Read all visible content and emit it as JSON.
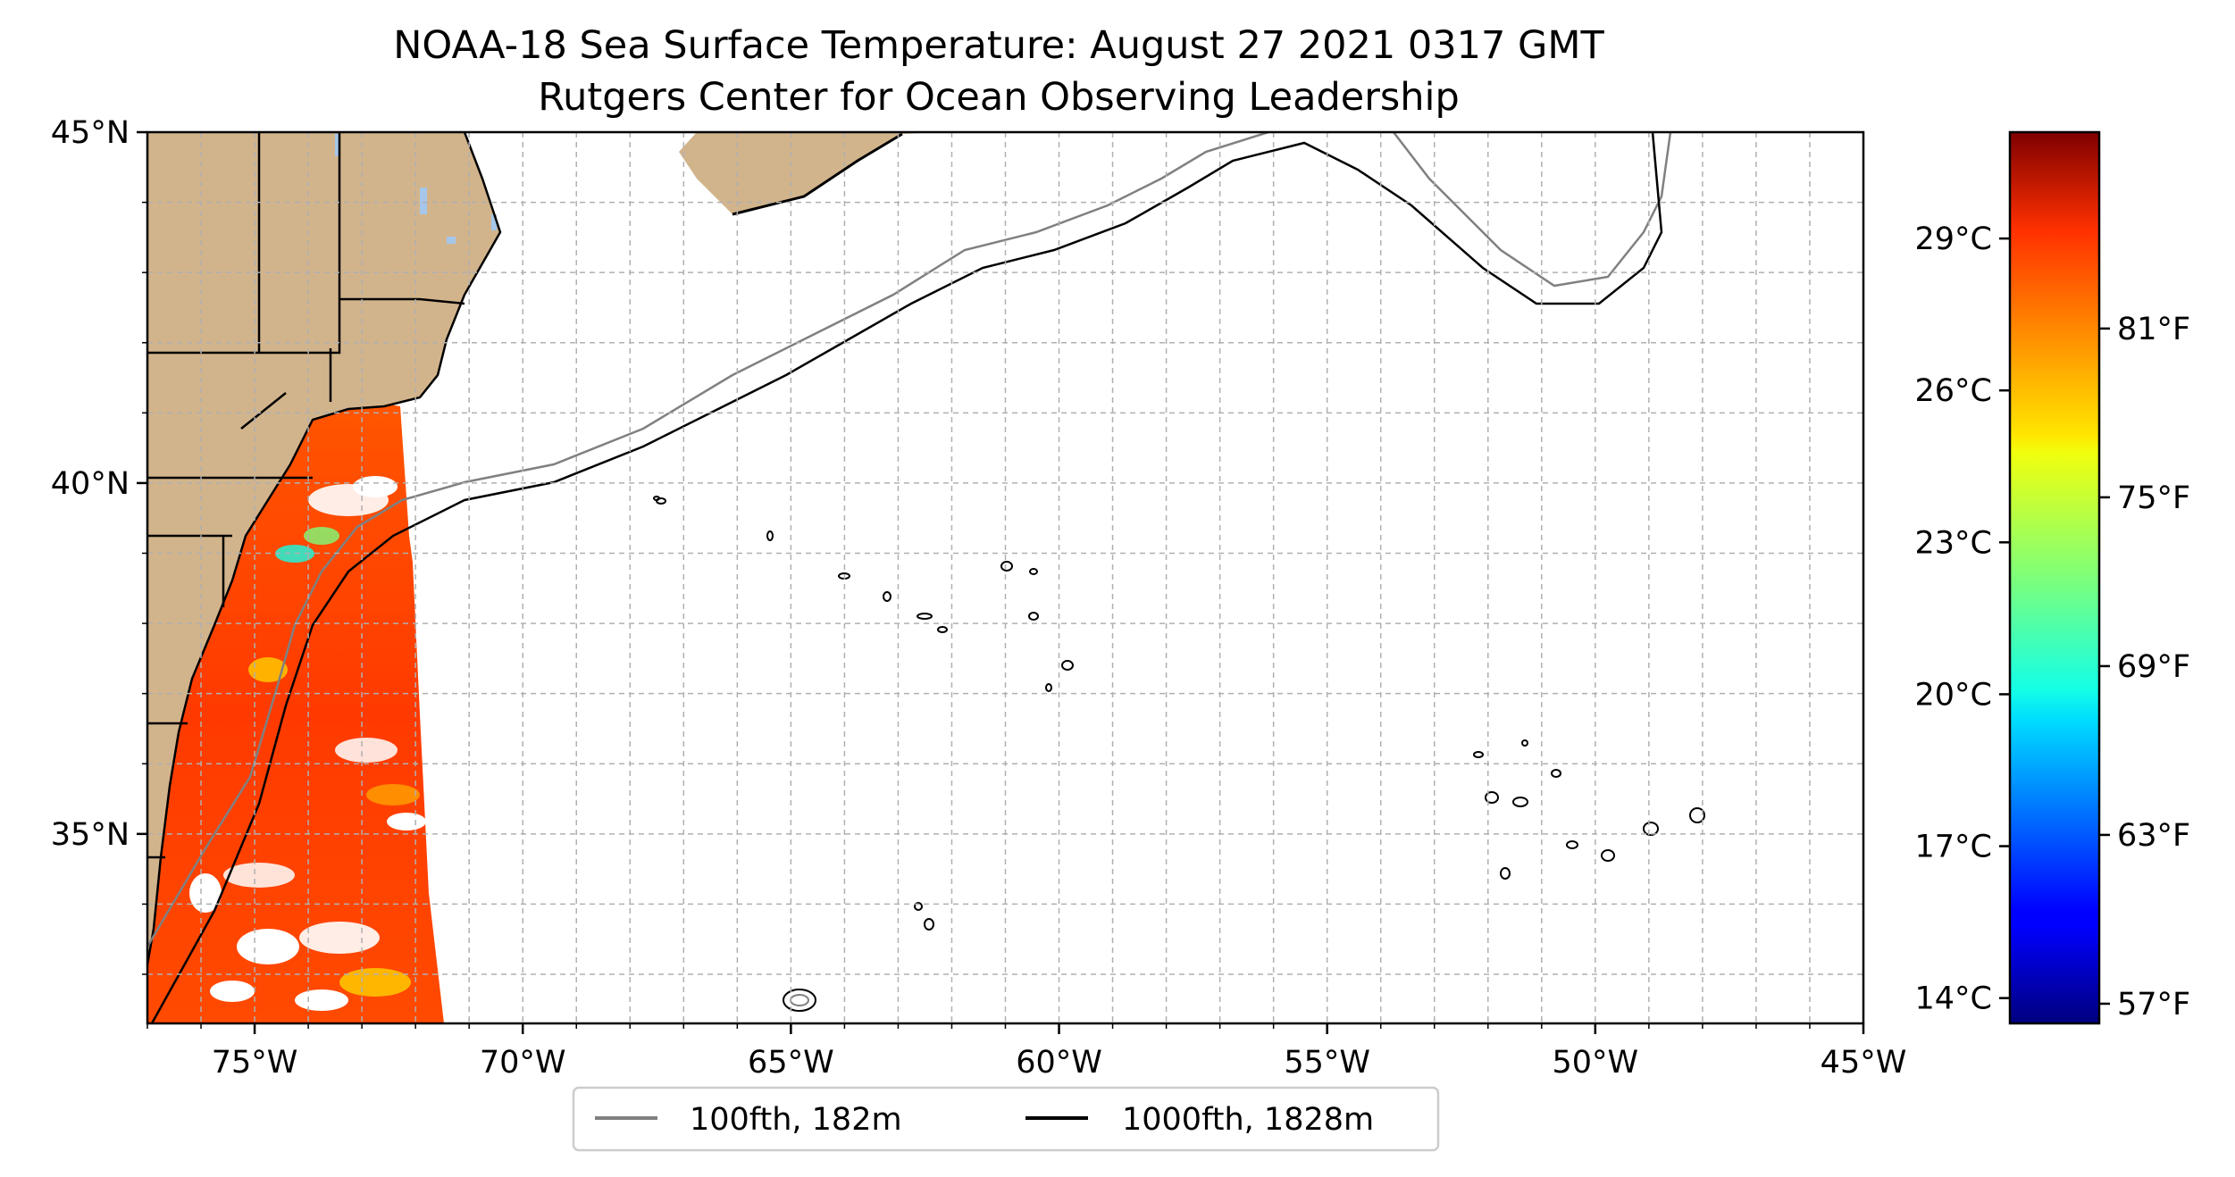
{
  "title": {
    "line1": "NOAA-18 Sea Surface Temperature: August 27 2021 0317 GMT",
    "line2": "Rutgers Center for Ocean Observing Leadership"
  },
  "map": {
    "lon_range": [
      -77,
      -45
    ],
    "lat_range": [
      32.3,
      45
    ],
    "lon_ticks": [
      {
        "value": -75,
        "label": "75°W"
      },
      {
        "value": -70,
        "label": "70°W"
      },
      {
        "value": -65,
        "label": "65°W"
      },
      {
        "value": -60,
        "label": "60°W"
      },
      {
        "value": -55,
        "label": "55°W"
      },
      {
        "value": -50,
        "label": "50°W"
      },
      {
        "value": -45,
        "label": "45°W"
      }
    ],
    "lat_ticks": [
      {
        "value": 45,
        "label": "45°N"
      },
      {
        "value": 40,
        "label": "40°N"
      },
      {
        "value": 35,
        "label": "35°N"
      }
    ],
    "grid": "dashed, every 1°",
    "land_color": "#d2b48c",
    "lake_color": "#a6c6ea",
    "contour_100fth_color": "#808080",
    "contour_1000fth_color": "#000000"
  },
  "colorbar": {
    "colormap": "jet",
    "celsius_range": [
      13.5,
      31.1
    ],
    "celsius_ticks": [
      {
        "value": 29,
        "label": "29°C"
      },
      {
        "value": 26,
        "label": "26°C"
      },
      {
        "value": 23,
        "label": "23°C"
      },
      {
        "value": 20,
        "label": "20°C"
      },
      {
        "value": 17,
        "label": "17°C"
      },
      {
        "value": 14,
        "label": "14°C"
      }
    ],
    "fahrenheit_ticks": [
      {
        "value": 81,
        "label": "81°F"
      },
      {
        "value": 75,
        "label": "75°F"
      },
      {
        "value": 69,
        "label": "69°F"
      },
      {
        "value": 63,
        "label": "63°F"
      },
      {
        "value": 57,
        "label": "57°F"
      }
    ]
  },
  "legend": {
    "placement": "bottom-center",
    "items": [
      {
        "label": "100fth, 182m",
        "color": "#808080"
      },
      {
        "label": "1000fth, 1828m",
        "color": "#000000"
      }
    ]
  }
}
